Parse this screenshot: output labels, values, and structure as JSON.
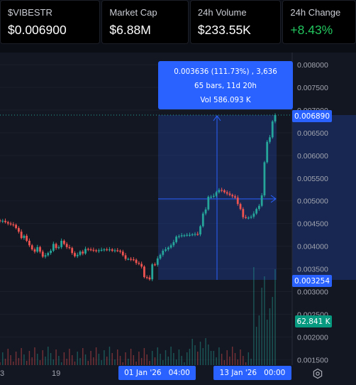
{
  "stats": [
    {
      "label": "$VIBESTR",
      "value": "$0.006900",
      "positive": false
    },
    {
      "label": "Market Cap",
      "value": "$6.88M",
      "positive": false
    },
    {
      "label": "24h Volume",
      "value": "$233.55K",
      "positive": false
    },
    {
      "label": "24h Change",
      "value": "+8.43%",
      "positive": true
    }
  ],
  "tooltip": {
    "line1": "0.003636 (111.73%) , 3,636",
    "line2": "65 bars, 11d 20h",
    "line3": "Vol 586.093 K"
  },
  "price_axis": {
    "ticks": [
      "0.008000",
      "0.007500",
      "0.007000",
      "0.006500",
      "0.006000",
      "0.005500",
      "0.005000",
      "0.004500",
      "0.004000",
      "0.003500",
      "0.003000",
      "0.002500",
      "0.002000",
      "0.001500"
    ],
    "current_price_label": "0.006890",
    "selection_low_label": "0.003254",
    "volume_label": "62.841 K"
  },
  "time_axis": {
    "ticks": [
      "3",
      "19"
    ],
    "range_start_label": "01 Jan '26   04:00",
    "range_end_label": "13 Jan '26   00:00"
  },
  "colors": {
    "up": "#26a69a",
    "down": "#ef5350",
    "accent": "#2962ff",
    "positive_text": "#22c55e"
  },
  "icons": {
    "settings": "gear-icon"
  },
  "chart_data": {
    "type": "candlestick",
    "series": [
      {
        "name": "",
        "values": [
          0.00455,
          0.00456,
          0.00453,
          0.0045,
          0.00448,
          0.00447,
          0.0044,
          0.00432,
          0.00418,
          0.00423,
          0.00412,
          0.00402,
          0.00393,
          0.00388,
          0.00398,
          0.00388,
          0.00377,
          0.0038,
          0.00385,
          0.0039,
          0.00405,
          0.00396,
          0.00398,
          0.00412,
          0.00405,
          0.00398,
          0.00396,
          0.00385,
          0.00378,
          0.00381,
          0.00388,
          0.00384,
          0.00394,
          0.00393,
          0.00392,
          0.00391,
          0.00389,
          0.00391,
          0.00392,
          0.00393,
          0.00392,
          0.00393,
          0.0039,
          0.00391,
          0.0039,
          0.00388,
          0.0038,
          0.00372,
          0.00372,
          0.00371,
          0.0037,
          0.00363,
          0.00361,
          0.00355,
          0.00332,
          0.00331,
          0.00327,
          0.0036,
          0.00359,
          0.00373,
          0.00381,
          0.0039,
          0.00393,
          0.00397,
          0.00402,
          0.00409,
          0.00421,
          0.00422,
          0.00424,
          0.00424,
          0.00425,
          0.00425,
          0.00426,
          0.00427,
          0.00426,
          0.00444,
          0.00472,
          0.00481,
          0.00509,
          0.00509,
          0.00511,
          0.00519,
          0.00524,
          0.00523,
          0.00519,
          0.00516,
          0.00513,
          0.0051,
          0.00507,
          0.00493,
          0.00482,
          0.00464,
          0.00463,
          0.00463,
          0.00465,
          0.00472,
          0.00482,
          0.00489,
          0.00512,
          0.00585,
          0.0063,
          0.0064,
          0.00675,
          0.00689
        ]
      }
    ],
    "ylim": [
      0.0015,
      0.0081
    ],
    "selection": {
      "start_label": "01 Jan '26 04:00",
      "end_label": "13 Jan '26 00:00",
      "low": 0.003254,
      "high": 0.00689
    }
  }
}
